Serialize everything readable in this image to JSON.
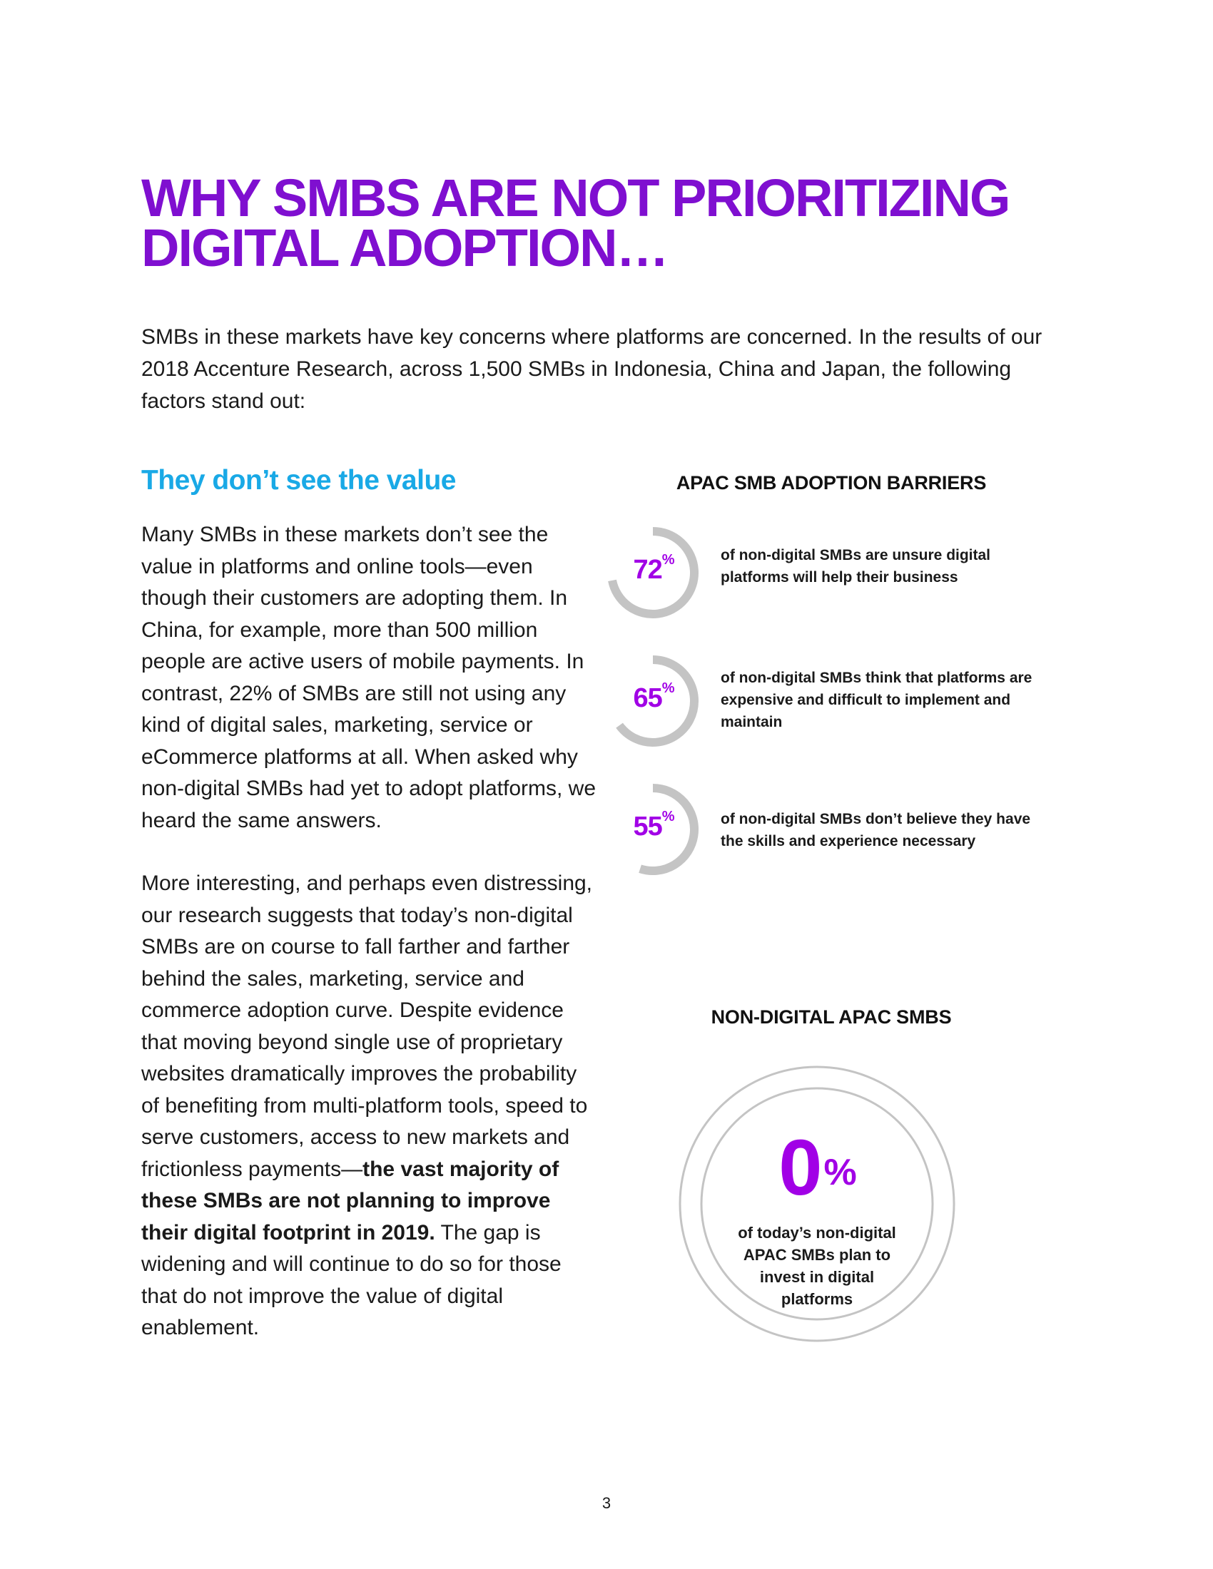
{
  "title": {
    "line1": "WHY SMBS ARE NOT PRIORITIZING",
    "line2": "DIGITAL ADOPTION…"
  },
  "intro": "SMBs in these markets have key concerns where platforms are concerned. In the results of our 2018 Accenture Research, across 1,500 SMBs in Indonesia, China and Japan, the following factors stand out:",
  "subheading": "They don’t see the value",
  "body": {
    "p1": "Many SMBs in these markets don’t see the value in platforms and online tools—even though their customers are adopting them. In China, for example, more than 500 million people are active users of mobile payments. In contrast, 22% of SMBs are still not using any kind of digital sales, marketing, service or eCommerce platforms at all. When asked why non-digital SMBs had yet to adopt platforms, we heard the same answers.",
    "p2_start": "More interesting, and perhaps even distressing, our research suggests that today’s non-digital SMBs are on course to fall farther and farther behind the sales, marketing, service and commerce adoption curve. Despite evidence that moving beyond single use of proprietary websites dramatically improves the probability of benefiting from multi-platform tools, speed to serve customers, access to new markets and frictionless payments—",
    "p2_bold": "the vast majority of these SMBs are not planning to improve their digital footprint in 2019.",
    "p2_end": " The gap is widening and will continue to do so for those that do not improve the value of digital enablement."
  },
  "chart_data": [
    {
      "type": "radial",
      "title": "APAC SMB ADOPTION BARRIERS",
      "unit": "%",
      "items": [
        {
          "value": 72,
          "label": "72",
          "description": "of non-digital SMBs are unsure digital platforms will help their business"
        },
        {
          "value": 65,
          "label": "65",
          "description": "of non-digital SMBs think that platforms are expensive and difficult to implement and maintain"
        },
        {
          "value": 55,
          "label": "55",
          "description": "of non-digital SMBs don’t believe they have the skills and experience necessary"
        }
      ]
    },
    {
      "type": "stat",
      "title": "NON-DIGITAL APAC SMBS",
      "value": 0,
      "label": "0",
      "unit": "%",
      "description": "of today’s non-digital APAC SMBs plan to invest in digital platforms"
    }
  ],
  "colors": {
    "title": "#7f0fd0",
    "subheading": "#19a9e6",
    "accent": "#a100e6",
    "ring": "#c4c4c4"
  },
  "page_number": "3"
}
